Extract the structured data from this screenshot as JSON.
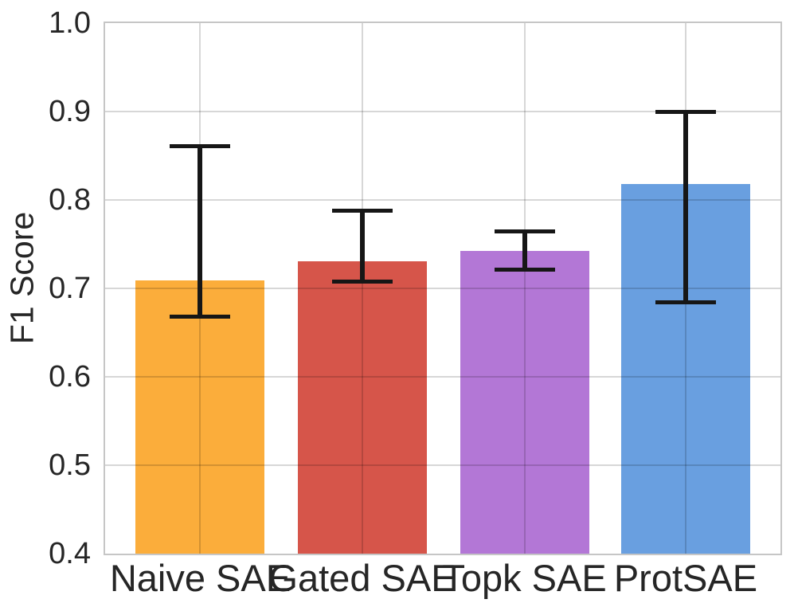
{
  "chart_data": {
    "type": "bar",
    "title": "",
    "xlabel": "",
    "ylabel": "F1 Score",
    "ylim": [
      0.4,
      1.0
    ],
    "yticks": [
      1.0,
      0.9,
      0.8,
      0.7,
      0.6,
      0.5,
      0.4
    ],
    "ytick_labels": [
      "1.0",
      "0.9",
      "0.8",
      "0.7",
      "0.6",
      "0.5",
      "0.4"
    ],
    "grid": true,
    "legend_position": "none",
    "categories": [
      "Naive SAE",
      "Gated SAE",
      "Topk SAE",
      "ProtSAE"
    ],
    "series": [
      {
        "name": "F1 Score",
        "values": [
          0.709,
          0.731,
          0.742,
          0.818
        ],
        "error_low": [
          0.668,
          0.708,
          0.721,
          0.684
        ],
        "error_high": [
          0.861,
          0.788,
          0.764,
          0.9
        ]
      }
    ],
    "bar_colors": [
      "#FBAD3B",
      "#D6554A",
      "#B377D6",
      "#699FE0"
    ],
    "error_bar_color": "#161616",
    "text_color": "#262626",
    "grid_color": "#d6d6d6",
    "spine_color": "#c6c6c6",
    "background_color": "#ffffff"
  }
}
